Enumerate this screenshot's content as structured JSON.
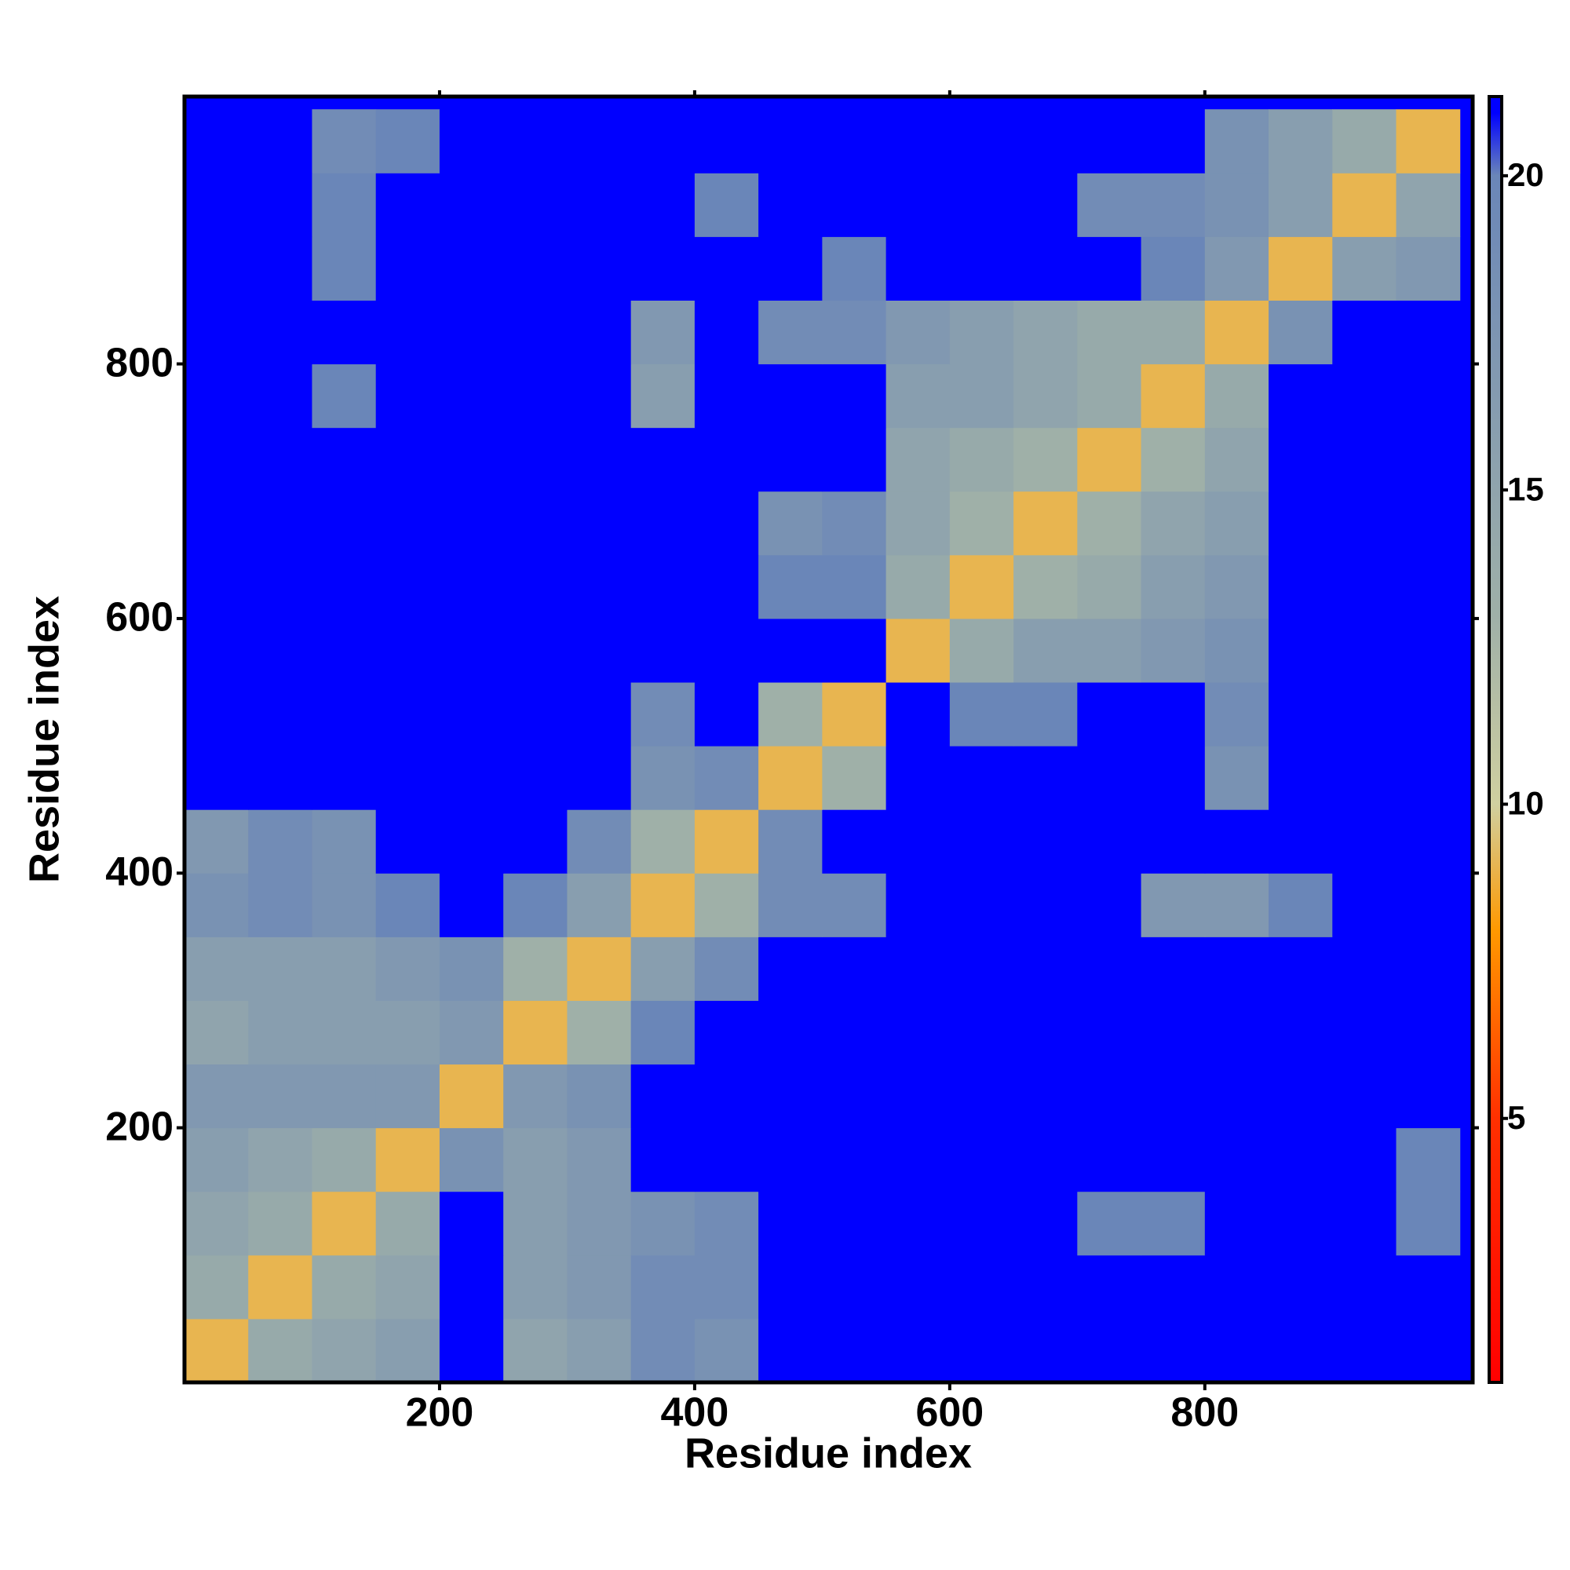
{
  "chart_data": {
    "type": "heatmap",
    "xlabel": "Residue index",
    "ylabel": "Residue index",
    "xlim": [
      0,
      1010
    ],
    "ylim": [
      0,
      1010
    ],
    "xticks": [
      200,
      400,
      600,
      800
    ],
    "yticks": [
      200,
      400,
      600,
      800
    ],
    "bins": [
      0,
      50,
      100,
      150,
      200,
      250,
      300,
      350,
      400,
      450,
      500,
      550,
      600,
      650,
      700,
      750,
      800,
      850,
      900,
      950,
      1000
    ],
    "clim": [
      0.8,
      21.26
    ],
    "cticks": [
      5,
      10,
      15,
      20
    ],
    "colorscale": [
      [
        0.8,
        "#ff0000"
      ],
      [
        5,
        "#ff3000"
      ],
      [
        8,
        "#ff9900"
      ],
      [
        10,
        "#d0d0a0"
      ],
      [
        13,
        "#9fb0a8"
      ],
      [
        20,
        "#6a86b8"
      ],
      [
        21,
        "#0000ff"
      ],
      [
        21.26,
        "#0000ff"
      ]
    ],
    "z": [
      [
        9,
        14,
        15,
        16,
        21,
        15,
        16,
        19,
        18,
        21,
        21,
        21,
        21,
        21,
        21,
        21,
        21,
        21,
        21,
        21
      ],
      [
        14,
        9,
        14,
        15,
        21,
        16,
        17,
        19,
        19,
        21,
        21,
        21,
        21,
        21,
        21,
        21,
        21,
        21,
        21,
        21
      ],
      [
        15,
        14,
        9,
        14,
        21,
        16,
        17,
        18,
        19,
        21,
        21,
        21,
        21,
        21,
        20,
        20,
        21,
        21,
        21,
        20
      ],
      [
        16,
        15,
        14,
        9,
        18,
        16,
        17,
        21,
        21,
        21,
        21,
        21,
        21,
        21,
        21,
        21,
        21,
        21,
        21,
        20
      ],
      [
        17,
        17,
        17,
        17,
        9,
        17,
        18,
        21,
        21,
        21,
        21,
        21,
        21,
        21,
        21,
        21,
        21,
        21,
        21,
        21
      ],
      [
        15,
        16,
        16,
        16,
        17,
        9,
        13,
        20,
        21,
        21,
        21,
        21,
        21,
        21,
        21,
        21,
        21,
        21,
        21,
        21
      ],
      [
        16,
        16,
        16,
        17,
        18,
        13,
        9,
        16,
        19,
        21,
        21,
        21,
        21,
        21,
        21,
        21,
        21,
        21,
        21,
        21
      ],
      [
        18,
        19,
        18,
        20,
        21,
        20,
        16,
        9,
        13,
        19,
        19,
        21,
        21,
        21,
        21,
        17,
        17,
        20,
        21,
        21
      ],
      [
        17,
        19,
        18,
        21,
        21,
        21,
        19,
        13,
        9,
        19,
        21,
        21,
        21,
        21,
        21,
        21,
        21,
        21,
        21,
        21
      ],
      [
        21,
        21,
        21,
        21,
        21,
        21,
        21,
        18,
        19,
        9,
        13,
        21,
        21,
        21,
        21,
        21,
        18,
        21,
        21,
        21
      ],
      [
        21,
        21,
        21,
        21,
        21,
        21,
        21,
        19,
        21,
        13,
        9,
        21,
        20,
        20,
        21,
        21,
        19,
        21,
        21,
        21
      ],
      [
        21,
        21,
        21,
        21,
        21,
        21,
        21,
        21,
        21,
        21,
        21,
        9,
        14,
        16,
        16,
        17,
        18,
        21,
        21,
        21
      ],
      [
        21,
        21,
        21,
        21,
        21,
        21,
        21,
        21,
        21,
        20,
        20,
        14,
        9,
        13,
        14,
        16,
        17,
        21,
        21,
        21
      ],
      [
        21,
        21,
        21,
        21,
        21,
        21,
        21,
        21,
        21,
        18,
        19,
        15,
        13,
        9,
        13,
        15,
        16,
        21,
        21,
        21
      ],
      [
        21,
        21,
        21,
        21,
        21,
        21,
        21,
        21,
        21,
        21,
        21,
        15,
        14,
        13,
        9,
        13,
        15,
        21,
        21,
        21
      ],
      [
        21,
        21,
        20,
        21,
        21,
        21,
        21,
        16,
        21,
        21,
        21,
        16,
        16,
        15,
        14,
        9,
        14,
        21,
        21,
        21
      ],
      [
        21,
        21,
        21,
        21,
        21,
        21,
        21,
        17,
        21,
        19,
        19,
        17,
        16,
        15,
        14,
        14,
        9,
        18,
        21,
        21
      ],
      [
        21,
        21,
        20,
        21,
        21,
        21,
        21,
        21,
        21,
        21,
        20,
        21,
        21,
        21,
        21,
        20,
        17,
        9,
        16,
        17
      ],
      [
        21,
        21,
        20,
        21,
        21,
        21,
        21,
        21,
        20,
        21,
        21,
        21,
        21,
        21,
        19,
        19,
        18,
        16,
        9,
        15
      ],
      [
        21,
        21,
        19,
        20,
        21,
        21,
        21,
        21,
        21,
        21,
        21,
        21,
        21,
        21,
        21,
        21,
        18,
        16,
        14,
        9
      ]
    ]
  }
}
